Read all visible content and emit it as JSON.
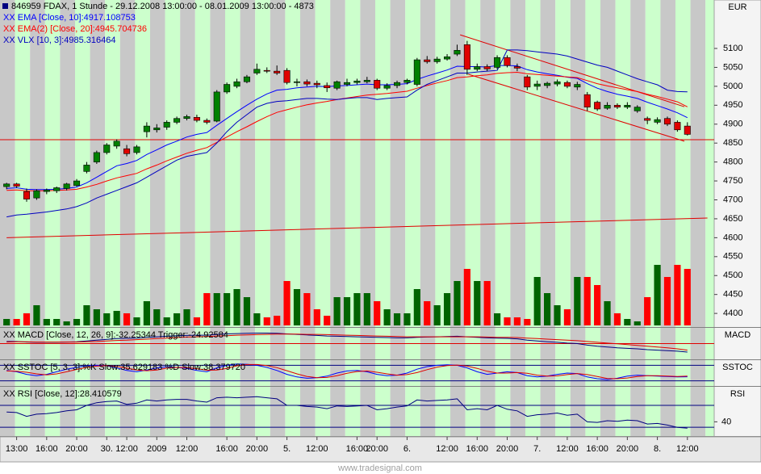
{
  "chart_data": {
    "type": "candlestick",
    "title": "846959  FDAX, 1 Stunde - 29.12.2008 13:00:00 - 08.01.2009 13:00:00 - 4873",
    "y_label": "EUR",
    "ylim": [
      4364,
      5228
    ],
    "yticks": [
      4400,
      4450,
      4500,
      4550,
      4600,
      4650,
      4700,
      4750,
      4800,
      4850,
      4900,
      4950,
      5000,
      5050,
      5100
    ],
    "up_color": "#008000",
    "down_color": "#e00000",
    "volume_up_color": "#006400",
    "volume_down_color": "#ff0000",
    "candles": [
      [
        4735,
        4745,
        4728,
        4742
      ],
      [
        4742,
        4745,
        4732,
        4736
      ],
      [
        4722,
        4730,
        4695,
        4702
      ],
      [
        4705,
        4728,
        4700,
        4724
      ],
      [
        4722,
        4730,
        4715,
        4726
      ],
      [
        4724,
        4735,
        4718,
        4732
      ],
      [
        4730,
        4745,
        4725,
        4742
      ],
      [
        4738,
        4755,
        4735,
        4750
      ],
      [
        4775,
        4800,
        4770,
        4792
      ],
      [
        4800,
        4830,
        4795,
        4825
      ],
      [
        4825,
        4850,
        4820,
        4845
      ],
      [
        4842,
        4860,
        4835,
        4855
      ],
      [
        4835,
        4845,
        4815,
        4822
      ],
      [
        4825,
        4845,
        4820,
        4840
      ],
      [
        4880,
        4905,
        4865,
        4895
      ],
      [
        4885,
        4900,
        4878,
        4890
      ],
      [
        4892,
        4910,
        4885,
        4905
      ],
      [
        4905,
        4920,
        4900,
        4915
      ],
      [
        4915,
        4925,
        4910,
        4920
      ],
      [
        4918,
        4925,
        4905,
        4910
      ],
      [
        4910,
        4915,
        4900,
        4905
      ],
      [
        4908,
        4990,
        4905,
        4985
      ],
      [
        4985,
        5010,
        4980,
        5005
      ],
      [
        5000,
        5020,
        4995,
        5012
      ],
      [
        5012,
        5030,
        5008,
        5025
      ],
      [
        5035,
        5060,
        5030,
        5045
      ],
      [
        5042,
        5050,
        5035,
        5040
      ],
      [
        5040,
        5055,
        5030,
        5035
      ],
      [
        5042,
        5048,
        5005,
        5010
      ],
      [
        5010,
        5020,
        5000,
        5012
      ],
      [
        5012,
        5018,
        5000,
        5006
      ],
      [
        5008,
        5015,
        4995,
        5004
      ],
      [
        5002,
        5010,
        4985,
        4996
      ],
      [
        4995,
        5015,
        4990,
        5012
      ],
      [
        5005,
        5020,
        5000,
        5010
      ],
      [
        5010,
        5020,
        5005,
        5014
      ],
      [
        5012,
        5025,
        5008,
        5016
      ],
      [
        5016,
        5020,
        4990,
        4995
      ],
      [
        4995,
        5008,
        4990,
        5002
      ],
      [
        5002,
        5015,
        4995,
        5010
      ],
      [
        5010,
        5020,
        5005,
        5016
      ],
      [
        5005,
        5075,
        5000,
        5070
      ],
      [
        5070,
        5080,
        5060,
        5065
      ],
      [
        5065,
        5078,
        5060,
        5072
      ],
      [
        5072,
        5085,
        5068,
        5078
      ],
      [
        5085,
        5110,
        5080,
        5095
      ],
      [
        5110,
        5120,
        5030,
        5045
      ],
      [
        5045,
        5060,
        5040,
        5052
      ],
      [
        5052,
        5058,
        5040,
        5046
      ],
      [
        5050,
        5082,
        5045,
        5076
      ],
      [
        5076,
        5082,
        5050,
        5055
      ],
      [
        5052,
        5060,
        5040,
        5048
      ],
      [
        5025,
        5030,
        4990,
        4998
      ],
      [
        5000,
        5015,
        4990,
        5006
      ],
      [
        5002,
        5012,
        4995,
        5008
      ],
      [
        5006,
        5018,
        5000,
        5012
      ],
      [
        5010,
        5015,
        4995,
        5000
      ],
      [
        4998,
        5012,
        4990,
        5005
      ],
      [
        4978,
        4985,
        4935,
        4945
      ],
      [
        4958,
        4962,
        4935,
        4940
      ],
      [
        4942,
        4958,
        4938,
        4950
      ],
      [
        4950,
        4955,
        4940,
        4945
      ],
      [
        4945,
        4958,
        4940,
        4950
      ],
      [
        4935,
        4950,
        4930,
        4945
      ],
      [
        4915,
        4920,
        4900,
        4910
      ],
      [
        4905,
        4918,
        4900,
        4912
      ],
      [
        4915,
        4920,
        4895,
        4900
      ],
      [
        4905,
        4910,
        4880,
        4885
      ],
      [
        4895,
        4905,
        4870,
        4873
      ]
    ],
    "vlim": [
      0,
      100
    ],
    "volumes": [
      8,
      8,
      15,
      25,
      8,
      8,
      5,
      8,
      25,
      20,
      15,
      18,
      15,
      10,
      30,
      20,
      10,
      15,
      20,
      10,
      40,
      40,
      40,
      45,
      35,
      15,
      10,
      12,
      55,
      45,
      40,
      20,
      12,
      35,
      35,
      40,
      40,
      30,
      20,
      15,
      15,
      45,
      30,
      25,
      40,
      55,
      70,
      55,
      55,
      15,
      10,
      10,
      8,
      60,
      40,
      25,
      20,
      60,
      60,
      50,
      30,
      15,
      8,
      5,
      35,
      75,
      60,
      75,
      70
    ],
    "series": [
      {
        "name": "XX EMA [Close, 10]:4917.108753",
        "color": "#0000ff",
        "values": [
          4730,
          4732,
          4728,
          4727,
          4727,
          4728,
          4730,
          4734,
          4745,
          4760,
          4775,
          4790,
          4796,
          4804,
          4820,
          4832,
          4845,
          4855,
          4866,
          4873,
          4878,
          4897,
          4915,
          4933,
          4950,
          4966,
          4980,
          4990,
          4992,
          4996,
          4998,
          5000,
          4999,
          5001,
          5002,
          5004,
          5006,
          5004,
          5004,
          5005,
          5007,
          5018,
          5027,
          5035,
          5043,
          5053,
          5052,
          5052,
          5051,
          5055,
          5055,
          5054,
          5044,
          5038,
          5033,
          5029,
          5024,
          5021,
          5007,
          4995,
          4986,
          4979,
          4974,
          4968,
          4958,
          4949,
          4940,
          4930,
          4917.108753
        ]
      },
      {
        "name": "XX EMA(2) [Close, 20]:4945.704736",
        "color": "#ff0000",
        "values": [
          4725,
          4726,
          4724,
          4724,
          4724,
          4725,
          4726,
          4728,
          4734,
          4741,
          4750,
          4758,
          4764,
          4770,
          4782,
          4792,
          4803,
          4813,
          4823,
          4831,
          4838,
          4852,
          4866,
          4880,
          4893,
          4907,
          4920,
          4931,
          4938,
          4945,
          4951,
          4956,
          4960,
          4965,
          4969,
          4973,
          4977,
          4979,
          4981,
          4984,
          4987,
          4995,
          5002,
          5009,
          5015,
          5023,
          5025,
          5028,
          5030,
          5034,
          5036,
          5037,
          5033,
          5031,
          5029,
          5027,
          5025,
          5023,
          5015,
          5007,
          5001,
          4996,
          4991,
          4986,
          4979,
          4973,
          4966,
          4959,
          4945.704736
        ]
      },
      {
        "name": "XX VLX [10, 3]:4985.316464",
        "color": "#0000c0",
        "values": [
          4655,
          4660,
          4662,
          4665,
          4668,
          4672,
          4676,
          4682,
          4692,
          4705,
          4715,
          4725,
          4735,
          4745,
          4760,
          4775,
          4790,
          4805,
          4815,
          4820,
          4825,
          4850,
          4880,
          4905,
          4925,
          4945,
          4955,
          4960,
          4962,
          4965,
          4968,
          4968,
          4966,
          4965,
          4968,
          4970,
          4970,
          4965,
          4968,
          4970,
          4972,
          4990,
          5005,
          5015,
          5025,
          5035,
          5035,
          5038,
          5040,
          5042,
          5096,
          5096,
          5094,
          5091,
          5088,
          5085,
          5080,
          5072,
          5064,
          5056,
          5050,
          5040,
          5030,
          5020,
          5012,
          5004,
          4990,
          4986,
          4985.316464
        ]
      }
    ],
    "hlines": [
      {
        "value": 4859,
        "color": "#e00000"
      }
    ],
    "trendlines": [
      {
        "x": [
          45.3,
          67.7
        ],
        "y": [
          5136,
          4946
        ],
        "color": "#e00000"
      },
      {
        "x": [
          46.1,
          67.7
        ],
        "y": [
          5032,
          4855
        ],
        "color": "#e00000"
      },
      {
        "x": [
          0,
          70
        ],
        "y": [
          4600,
          4652
        ],
        "color": "#e00000"
      }
    ],
    "xticks": [
      {
        "value": 1,
        "label": "13:00"
      },
      {
        "value": 4,
        "label": "16:00"
      },
      {
        "value": 7,
        "label": "20:00"
      },
      {
        "value": 10,
        "label": "30."
      },
      {
        "value": 12,
        "label": "12:00"
      },
      {
        "value": 15,
        "label": "2009"
      },
      {
        "value": 18,
        "label": "12:00"
      },
      {
        "value": 22,
        "label": "16:00"
      },
      {
        "value": 25,
        "label": "20:00"
      },
      {
        "value": 28,
        "label": "5."
      },
      {
        "value": 31,
        "label": "12:00"
      },
      {
        "value": 35,
        "label": "16:00"
      },
      {
        "value": 37,
        "label": "20:00"
      },
      {
        "value": 40,
        "label": "6."
      },
      {
        "value": 44,
        "label": "12:00"
      },
      {
        "value": 47,
        "label": "16:00"
      },
      {
        "value": 50,
        "label": "20:00"
      },
      {
        "value": 53,
        "label": "7."
      },
      {
        "value": 56,
        "label": "12:00"
      },
      {
        "value": 59,
        "label": "16:00"
      },
      {
        "value": 62,
        "label": "20:00"
      },
      {
        "value": 65,
        "label": "8."
      },
      {
        "value": 68,
        "label": "12:00"
      }
    ],
    "panels": [
      {
        "label": "MACD",
        "legend": "XX MACD [Close, 12, 26, 9]:-32.25344 Trigger:-24.92584",
        "ylim": [
          -60,
          60
        ],
        "levels": [
          0
        ],
        "level_color": "#e00000",
        "series": [
          {
            "color": "#000080",
            "values": [
              8,
              8,
              6,
              5,
              5,
              5,
              6,
              7,
              10,
              13,
              16,
              19,
              20,
              21,
              24,
              26,
              28,
              30,
              31,
              32,
              32,
              35,
              37,
              38,
              39,
              40,
              40,
              39,
              37,
              35,
              33,
              31,
              29,
              28,
              27,
              26,
              25,
              24,
              23,
              22,
              22,
              24,
              25,
              26,
              27,
              28,
              26,
              24,
              22,
              21,
              20,
              18,
              13,
              10,
              7,
              5,
              2,
              0,
              -6,
              -10,
              -13,
              -16,
              -18,
              -20,
              -23,
              -25,
              -27,
              -29,
              -32.25344
            ]
          },
          {
            "color": "#e00000",
            "values": [
              6,
              7,
              7,
              6,
              6,
              6,
              6,
              6,
              7,
              8,
              10,
              12,
              13,
              15,
              17,
              19,
              21,
              23,
              25,
              26,
              27,
              29,
              30,
              32,
              33,
              34,
              35,
              36,
              36,
              36,
              35,
              35,
              34,
              33,
              32,
              31,
              30,
              29,
              28,
              27,
              26,
              26,
              26,
              26,
              26,
              26,
              26,
              26,
              25,
              24,
              24,
              23,
              21,
              19,
              17,
              15,
              13,
              11,
              8,
              5,
              2,
              -1,
              -4,
              -7,
              -10,
              -13,
              -16,
              -20,
              -24.92584
            ]
          }
        ]
      },
      {
        "label": "SSTOC",
        "legend": "XX SSTOC [5, 3, 3]:%K Slow:35.629183 %D Slow:38.379720",
        "ylim": [
          0,
          100
        ],
        "levels": [
          20,
          80
        ],
        "level_color": "#000080",
        "series": [
          {
            "color": "#0000ff",
            "values": [
              60,
              55,
              45,
              40,
              45,
              55,
              65,
              72,
              78,
              80,
              78,
              70,
              60,
              55,
              62,
              70,
              74,
              72,
              68,
              60,
              55,
              70,
              80,
              85,
              84,
              80,
              72,
              60,
              45,
              35,
              30,
              32,
              38,
              50,
              58,
              60,
              55,
              45,
              40,
              42,
              50,
              65,
              75,
              80,
              82,
              80,
              70,
              55,
              45,
              50,
              55,
              52,
              40,
              35,
              38,
              45,
              50,
              48,
              35,
              28,
              25,
              30,
              38,
              42,
              40,
              38,
              37,
              35,
              35.629183
            ]
          },
          {
            "color": "#e00000",
            "values": [
              58,
              57,
              53,
              47,
              43,
              47,
              55,
              64,
              72,
              77,
              79,
              76,
              69,
              62,
              59,
              62,
              69,
              72,
              71,
              67,
              61,
              62,
              68,
              78,
              83,
              83,
              79,
              71,
              59,
              47,
              37,
              32,
              33,
              40,
              49,
              56,
              58,
              53,
              47,
              42,
              44,
              52,
              63,
              73,
              79,
              81,
              77,
              68,
              57,
              50,
              50,
              52,
              49,
              42,
              38,
              39,
              44,
              48,
              44,
              37,
              29,
              28,
              31,
              37,
              40,
              40,
              38,
              37,
              38.37972
            ]
          }
        ]
      },
      {
        "label": "RSI",
        "legend": "XX RSI [Close, 12]:28.410579",
        "ylim": [
          14,
          104
        ],
        "levels": [
          30,
          70
        ],
        "level_color": "#000080",
        "yticks": [
          40
        ],
        "series": [
          {
            "color": "#000080",
            "values": [
              58,
              57,
              50,
              54,
              55,
              57,
              60,
              62,
              70,
              75,
              77,
              78,
              72,
              74,
              80,
              78,
              80,
              81,
              81,
              78,
              76,
              84,
              85,
              84,
              85,
              86,
              84,
              82,
              70,
              70,
              68,
              67,
              64,
              69,
              68,
              69,
              70,
              62,
              64,
              67,
              69,
              80,
              78,
              79,
              80,
              82,
              62,
              64,
              62,
              70,
              63,
              60,
              50,
              53,
              54,
              56,
              52,
              54,
              40,
              39,
              42,
              41,
              43,
              42,
              36,
              37,
              34,
              30,
              28.410579
            ]
          }
        ]
      }
    ],
    "footer": "www.tradesignal.com"
  }
}
